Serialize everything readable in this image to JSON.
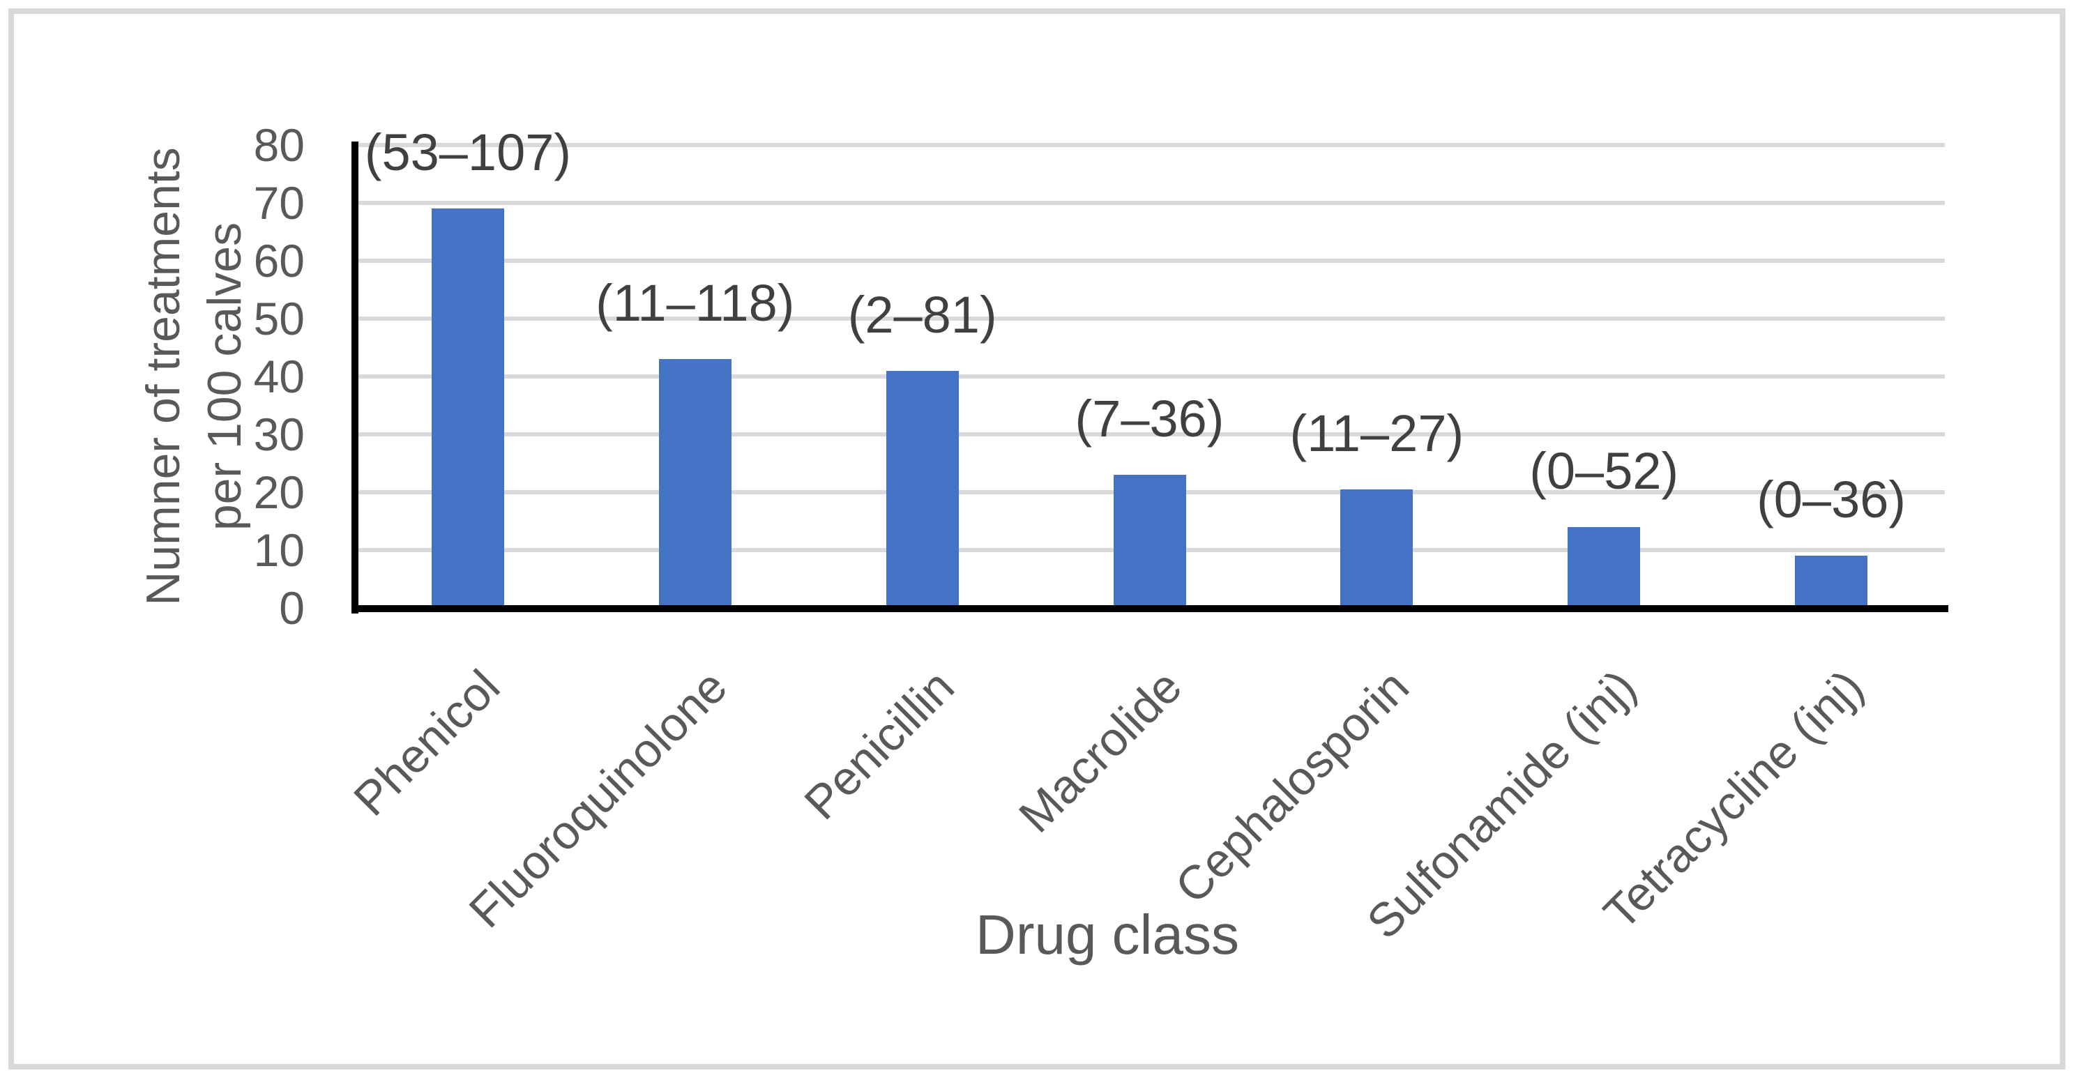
{
  "chart_data": {
    "type": "bar",
    "title": "",
    "categories": [
      "Phenicol",
      "Fluoroquinolone",
      "Penicillin",
      "Macrolide",
      "Cephalosporin",
      "Sulfonamide (inj)",
      "Tetracycline (inj)"
    ],
    "values": [
      69,
      43,
      41,
      23,
      20.5,
      14,
      9
    ],
    "range_labels": [
      "(53–107)",
      "(11–118)",
      "(2–81)",
      "(7–36)",
      "(11–27)",
      "(0–52)",
      "(0–36)"
    ],
    "xlabel": "Drug class",
    "ylabel_line1": "Numner of treatments",
    "ylabel_line2": "per 100 calves",
    "yticks": [
      0,
      10,
      20,
      30,
      40,
      50,
      60,
      70,
      80
    ],
    "ylim": [
      0,
      80
    ],
    "grid": true,
    "legend_position": "none"
  },
  "colors": {
    "bar": "#4472C4",
    "gridline": "#D9D9D9",
    "axis": "#000000",
    "tick_text": "#595959",
    "annotation_text": "#404040",
    "frame_border": "#D9D9D9",
    "background": "#FFFFFF"
  }
}
